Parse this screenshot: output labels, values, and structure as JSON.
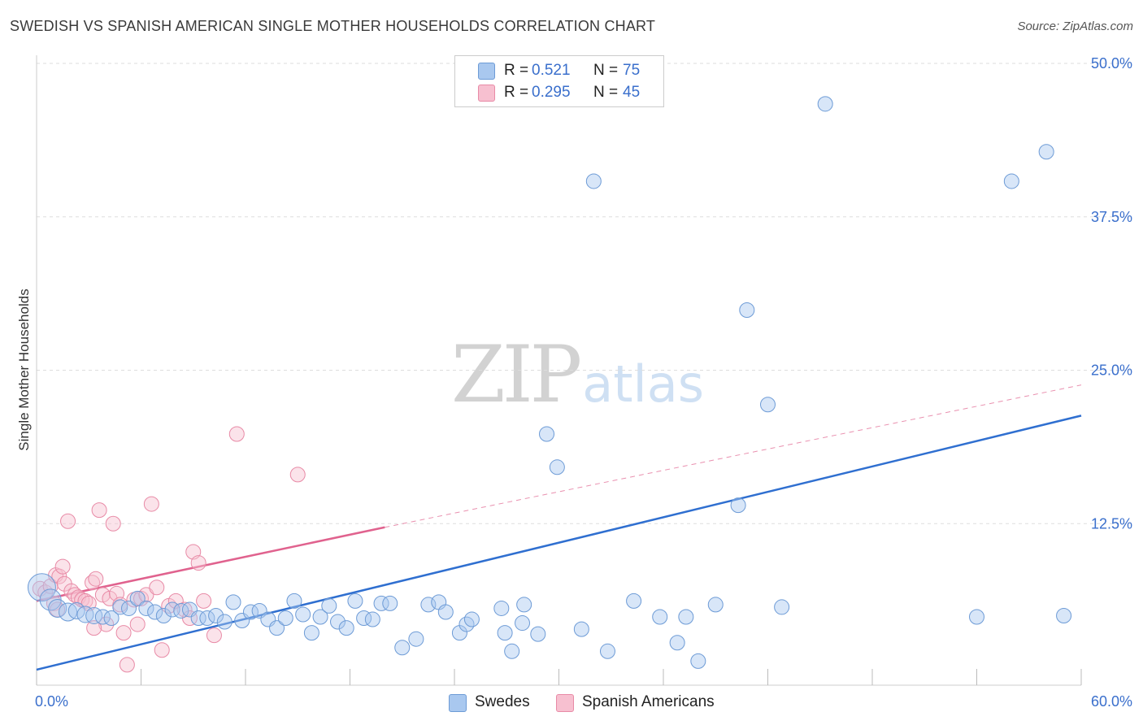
{
  "header": {
    "title": "SWEDISH VS SPANISH AMERICAN SINGLE MOTHER HOUSEHOLDS CORRELATION CHART",
    "source": "Source: ZipAtlas.com"
  },
  "watermark": {
    "zip": "ZIP",
    "atlas": "atlas"
  },
  "legend": {
    "rows": [
      {
        "r_label": "R =",
        "r_value": "0.521",
        "n_label": "N =",
        "n_value": "75",
        "color": "#a9c8ef",
        "border": "#6d9bd6"
      },
      {
        "r_label": "R =",
        "r_value": "0.295",
        "n_label": "N =",
        "n_value": "45",
        "color": "#f7c0d0",
        "border": "#e88aa6"
      }
    ],
    "bottom": [
      {
        "label": "Swedes",
        "color": "#a9c8ef",
        "border": "#6d9bd6"
      },
      {
        "label": "Spanish Americans",
        "color": "#f7c0d0",
        "border": "#e88aa6"
      }
    ]
  },
  "colors": {
    "blue_fill": "rgba(169,200,239,0.45)",
    "blue_stroke": "#6d9bd6",
    "blue_line": "#2f6fd0",
    "pink_fill": "rgba(247,192,208,0.45)",
    "pink_stroke": "#e88aa6",
    "pink_line": "#e0628e",
    "grid": "#dddddd",
    "tick_label": "#3a6fcc"
  },
  "chart_data": {
    "type": "scatter",
    "title": "SWEDISH VS SPANISH AMERICAN SINGLE MOTHER HOUSEHOLDS CORRELATION CHART",
    "xlabel": "",
    "ylabel": "Single Mother Households",
    "xlim": [
      0,
      60
    ],
    "ylim": [
      0,
      50
    ],
    "x_tick_labels": [
      "0.0%",
      "60.0%"
    ],
    "y_ticks": [
      12.5,
      25.0,
      37.5,
      50.0
    ],
    "y_tick_labels": [
      "12.5%",
      "25.0%",
      "37.5%",
      "50.0%"
    ],
    "grid": true,
    "legend_position": "top-center",
    "series": [
      {
        "name": "Swedes",
        "R": 0.521,
        "N": 75,
        "trend": {
          "x": [
            0,
            60
          ],
          "y": [
            0.6,
            21.3
          ],
          "style": "solid"
        },
        "points": [
          [
            0.3,
            7.3,
            16
          ],
          [
            0.8,
            6.3,
            12
          ],
          [
            1.2,
            5.6,
            10
          ],
          [
            1.8,
            5.3,
            10
          ],
          [
            2.3,
            5.4,
            9
          ],
          [
            2.8,
            5.1,
            9
          ],
          [
            3.3,
            5.0,
            9
          ],
          [
            3.8,
            4.9,
            8
          ],
          [
            4.3,
            4.8,
            8
          ],
          [
            4.8,
            5.7,
            8
          ],
          [
            5.3,
            5.6,
            8
          ],
          [
            5.8,
            6.4,
            8
          ],
          [
            6.3,
            5.6,
            8
          ],
          [
            6.8,
            5.3,
            8
          ],
          [
            7.3,
            5.0,
            8
          ],
          [
            7.8,
            5.5,
            8
          ],
          [
            8.3,
            5.4,
            8
          ],
          [
            8.8,
            5.5,
            8
          ],
          [
            9.3,
            4.8,
            8
          ],
          [
            9.8,
            4.8,
            8
          ],
          [
            10.3,
            5.0,
            8
          ],
          [
            10.8,
            4.5,
            8
          ],
          [
            11.3,
            6.1,
            8
          ],
          [
            11.8,
            4.6,
            8
          ],
          [
            12.3,
            5.3,
            8
          ],
          [
            12.8,
            5.4,
            8
          ],
          [
            13.3,
            4.7,
            8
          ],
          [
            13.8,
            4.0,
            8
          ],
          [
            14.3,
            4.8,
            8
          ],
          [
            14.8,
            6.2,
            8
          ],
          [
            15.3,
            5.1,
            8
          ],
          [
            15.8,
            3.6,
            8
          ],
          [
            16.3,
            4.9,
            8
          ],
          [
            16.8,
            5.8,
            8
          ],
          [
            17.3,
            4.5,
            8
          ],
          [
            17.8,
            4.0,
            8
          ],
          [
            18.3,
            6.2,
            8
          ],
          [
            18.8,
            4.8,
            8
          ],
          [
            19.3,
            4.7,
            8
          ],
          [
            19.8,
            6.0,
            8
          ],
          [
            20.3,
            6.0,
            8
          ],
          [
            21.0,
            2.4,
            8
          ],
          [
            21.8,
            3.1,
            8
          ],
          [
            22.5,
            5.9,
            8
          ],
          [
            23.1,
            6.1,
            8
          ],
          [
            23.5,
            5.3,
            8
          ],
          [
            24.3,
            3.6,
            8
          ],
          [
            24.7,
            4.3,
            8
          ],
          [
            25.0,
            4.7,
            8
          ],
          [
            26.7,
            5.6,
            8
          ],
          [
            26.9,
            3.6,
            8
          ],
          [
            27.3,
            2.1,
            8
          ],
          [
            27.9,
            4.4,
            8
          ],
          [
            28.0,
            5.9,
            8
          ],
          [
            28.8,
            3.5,
            8
          ],
          [
            29.3,
            19.8,
            8
          ],
          [
            29.9,
            17.1,
            8
          ],
          [
            31.3,
            3.9,
            8
          ],
          [
            32.0,
            40.4,
            8
          ],
          [
            32.8,
            2.1,
            8
          ],
          [
            34.3,
            6.2,
            8
          ],
          [
            35.8,
            4.9,
            8
          ],
          [
            36.8,
            2.8,
            8
          ],
          [
            37.3,
            4.9,
            8
          ],
          [
            38.0,
            1.3,
            8
          ],
          [
            39.0,
            5.9,
            8
          ],
          [
            40.3,
            14.0,
            8
          ],
          [
            40.8,
            29.9,
            8
          ],
          [
            42.0,
            22.2,
            8
          ],
          [
            42.8,
            5.7,
            8
          ],
          [
            45.3,
            46.7,
            8
          ],
          [
            54.0,
            4.9,
            8
          ],
          [
            56.0,
            40.4,
            8
          ],
          [
            58.0,
            42.8,
            8
          ],
          [
            59.0,
            5.0,
            8
          ]
        ]
      },
      {
        "name": "Spanish Americans",
        "R": 0.295,
        "N": 45,
        "trend": {
          "x": [
            0,
            20,
            60
          ],
          "y": [
            6.2,
            12.2,
            23.8
          ],
          "solid_until": 20
        },
        "points": [
          [
            0.2,
            7.2,
            8
          ],
          [
            0.5,
            6.9,
            8
          ],
          [
            0.8,
            7.4,
            8
          ],
          [
            1.0,
            6.0,
            8
          ],
          [
            1.1,
            8.3,
            8
          ],
          [
            1.3,
            8.2,
            8
          ],
          [
            1.5,
            9.0,
            8
          ],
          [
            1.6,
            7.6,
            8
          ],
          [
            1.8,
            12.7,
            8
          ],
          [
            2.0,
            7.0,
            8
          ],
          [
            2.2,
            6.7,
            8
          ],
          [
            2.4,
            6.5,
            8
          ],
          [
            2.6,
            6.3,
            8
          ],
          [
            2.8,
            6.2,
            8
          ],
          [
            3.0,
            6.0,
            8
          ],
          [
            3.2,
            7.7,
            8
          ],
          [
            3.4,
            8.0,
            8
          ],
          [
            3.6,
            13.6,
            8
          ],
          [
            3.8,
            6.7,
            8
          ],
          [
            4.0,
            4.3,
            8
          ],
          [
            4.2,
            6.4,
            8
          ],
          [
            4.4,
            12.5,
            8
          ],
          [
            4.6,
            6.8,
            8
          ],
          [
            4.8,
            5.9,
            8
          ],
          [
            5.0,
            3.6,
            8
          ],
          [
            5.2,
            1.0,
            8
          ],
          [
            5.6,
            6.3,
            8
          ],
          [
            5.8,
            4.3,
            8
          ],
          [
            6.0,
            6.4,
            8
          ],
          [
            6.3,
            6.7,
            8
          ],
          [
            6.6,
            14.1,
            8
          ],
          [
            6.9,
            7.3,
            8
          ],
          [
            7.2,
            2.2,
            8
          ],
          [
            7.6,
            5.8,
            8
          ],
          [
            8.0,
            6.2,
            8
          ],
          [
            8.5,
            5.5,
            8
          ],
          [
            8.8,
            4.8,
            8
          ],
          [
            9.0,
            10.2,
            8
          ],
          [
            9.3,
            9.3,
            8
          ],
          [
            9.6,
            6.2,
            8
          ],
          [
            10.2,
            3.4,
            8
          ],
          [
            11.5,
            19.8,
            8
          ],
          [
            15.0,
            16.5,
            8
          ],
          [
            3.3,
            4.0,
            8
          ],
          [
            1.2,
            5.5,
            8
          ]
        ]
      }
    ]
  }
}
